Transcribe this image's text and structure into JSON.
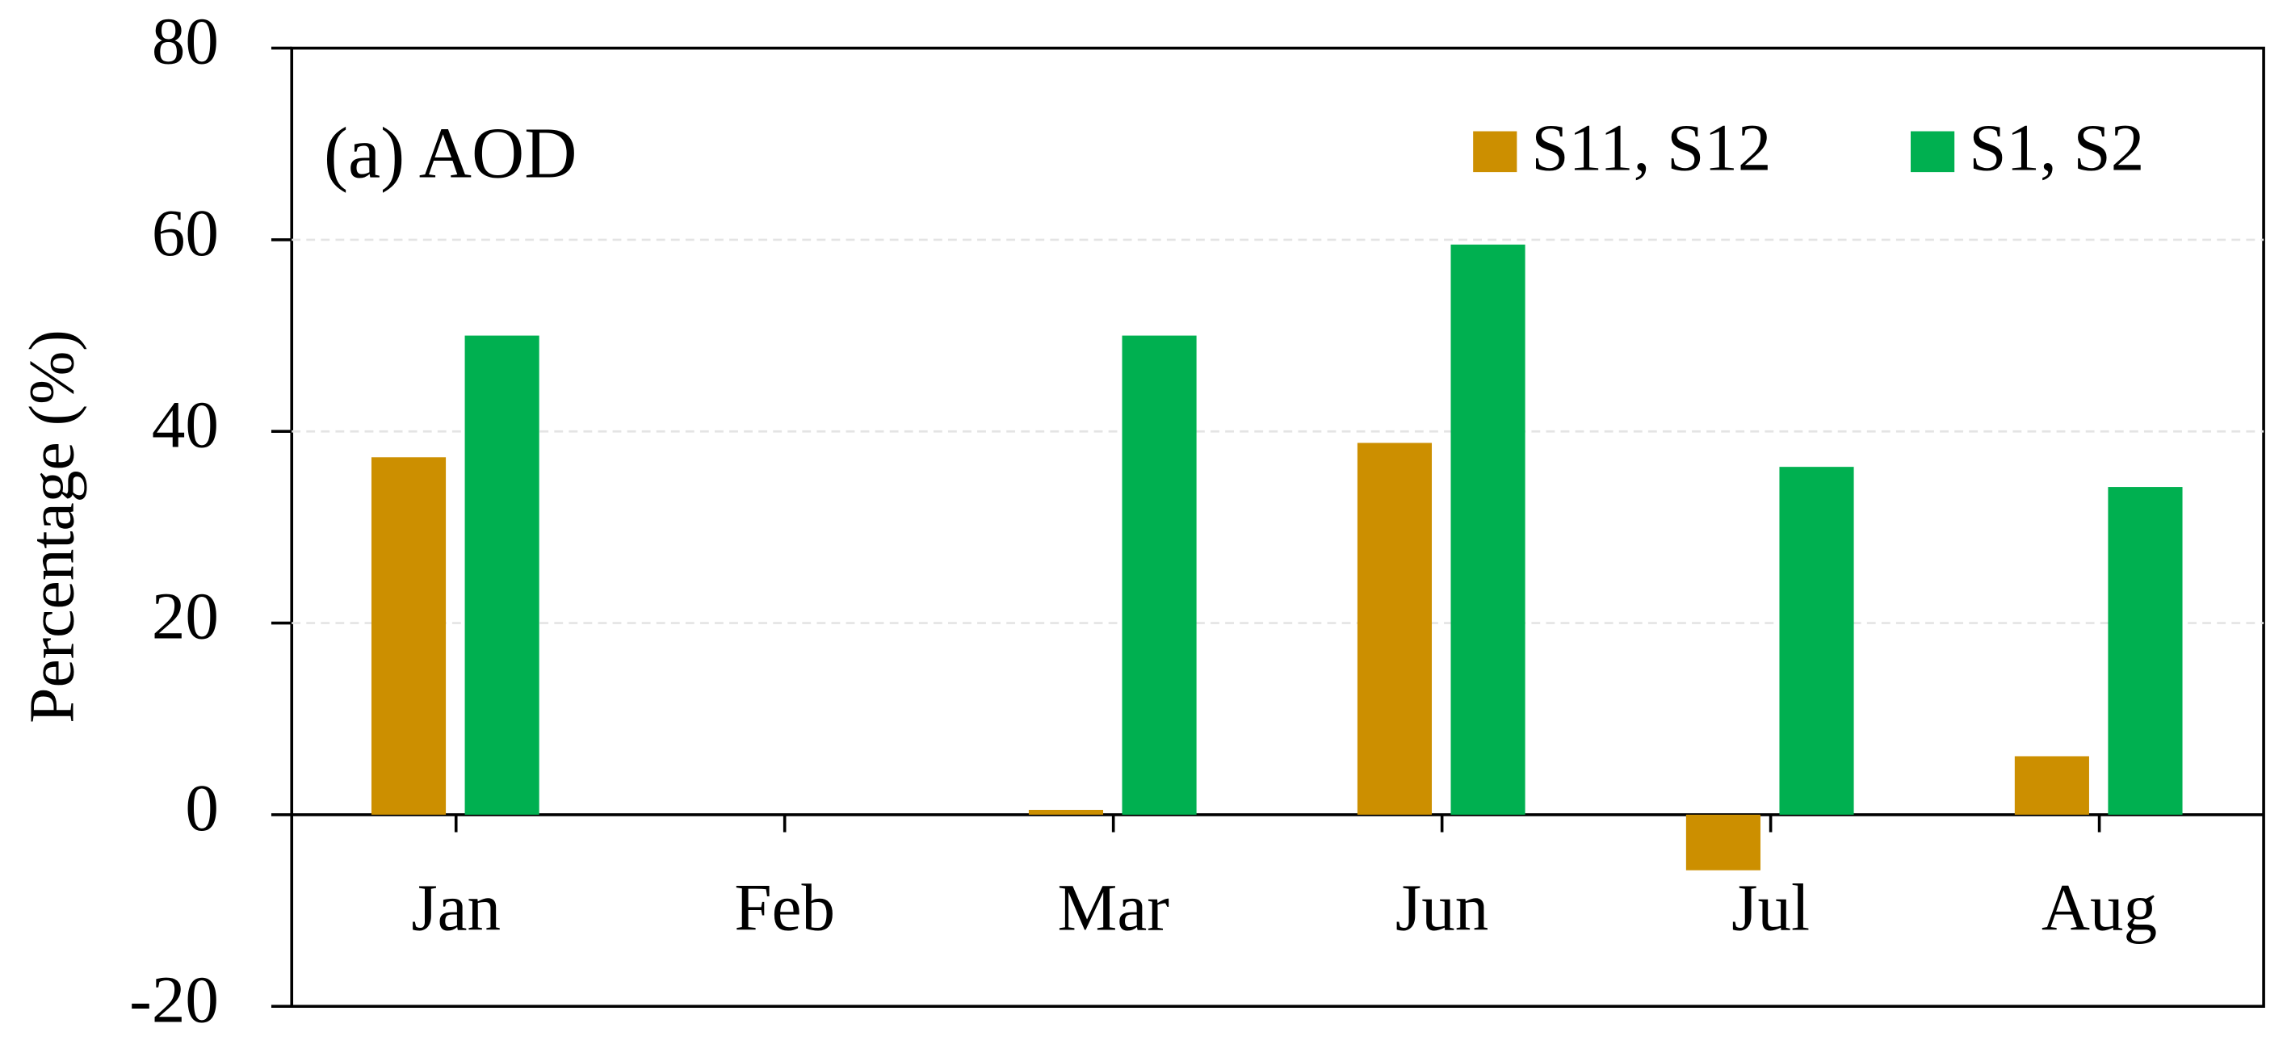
{
  "chart_data": {
    "type": "bar",
    "annotation": "(a) AOD",
    "y_label": "Percentage (%)",
    "categories": [
      "Jan",
      "Feb",
      "Mar",
      "Jun",
      "Jul",
      "Aug"
    ],
    "series": [
      {
        "name": "S11, S12",
        "color": "#cc8f00",
        "values": [
          37.3,
          null,
          0.5,
          38.8,
          -5.8,
          6.1
        ]
      },
      {
        "name": "S1, S2",
        "color": "#00b050",
        "values": [
          50.0,
          null,
          50.0,
          59.5,
          36.3,
          34.2
        ]
      }
    ],
    "ylim": [
      -20,
      80
    ],
    "yticks": [
      -20,
      0,
      20,
      40,
      60,
      80
    ],
    "grid": true,
    "legend": "top-right"
  }
}
